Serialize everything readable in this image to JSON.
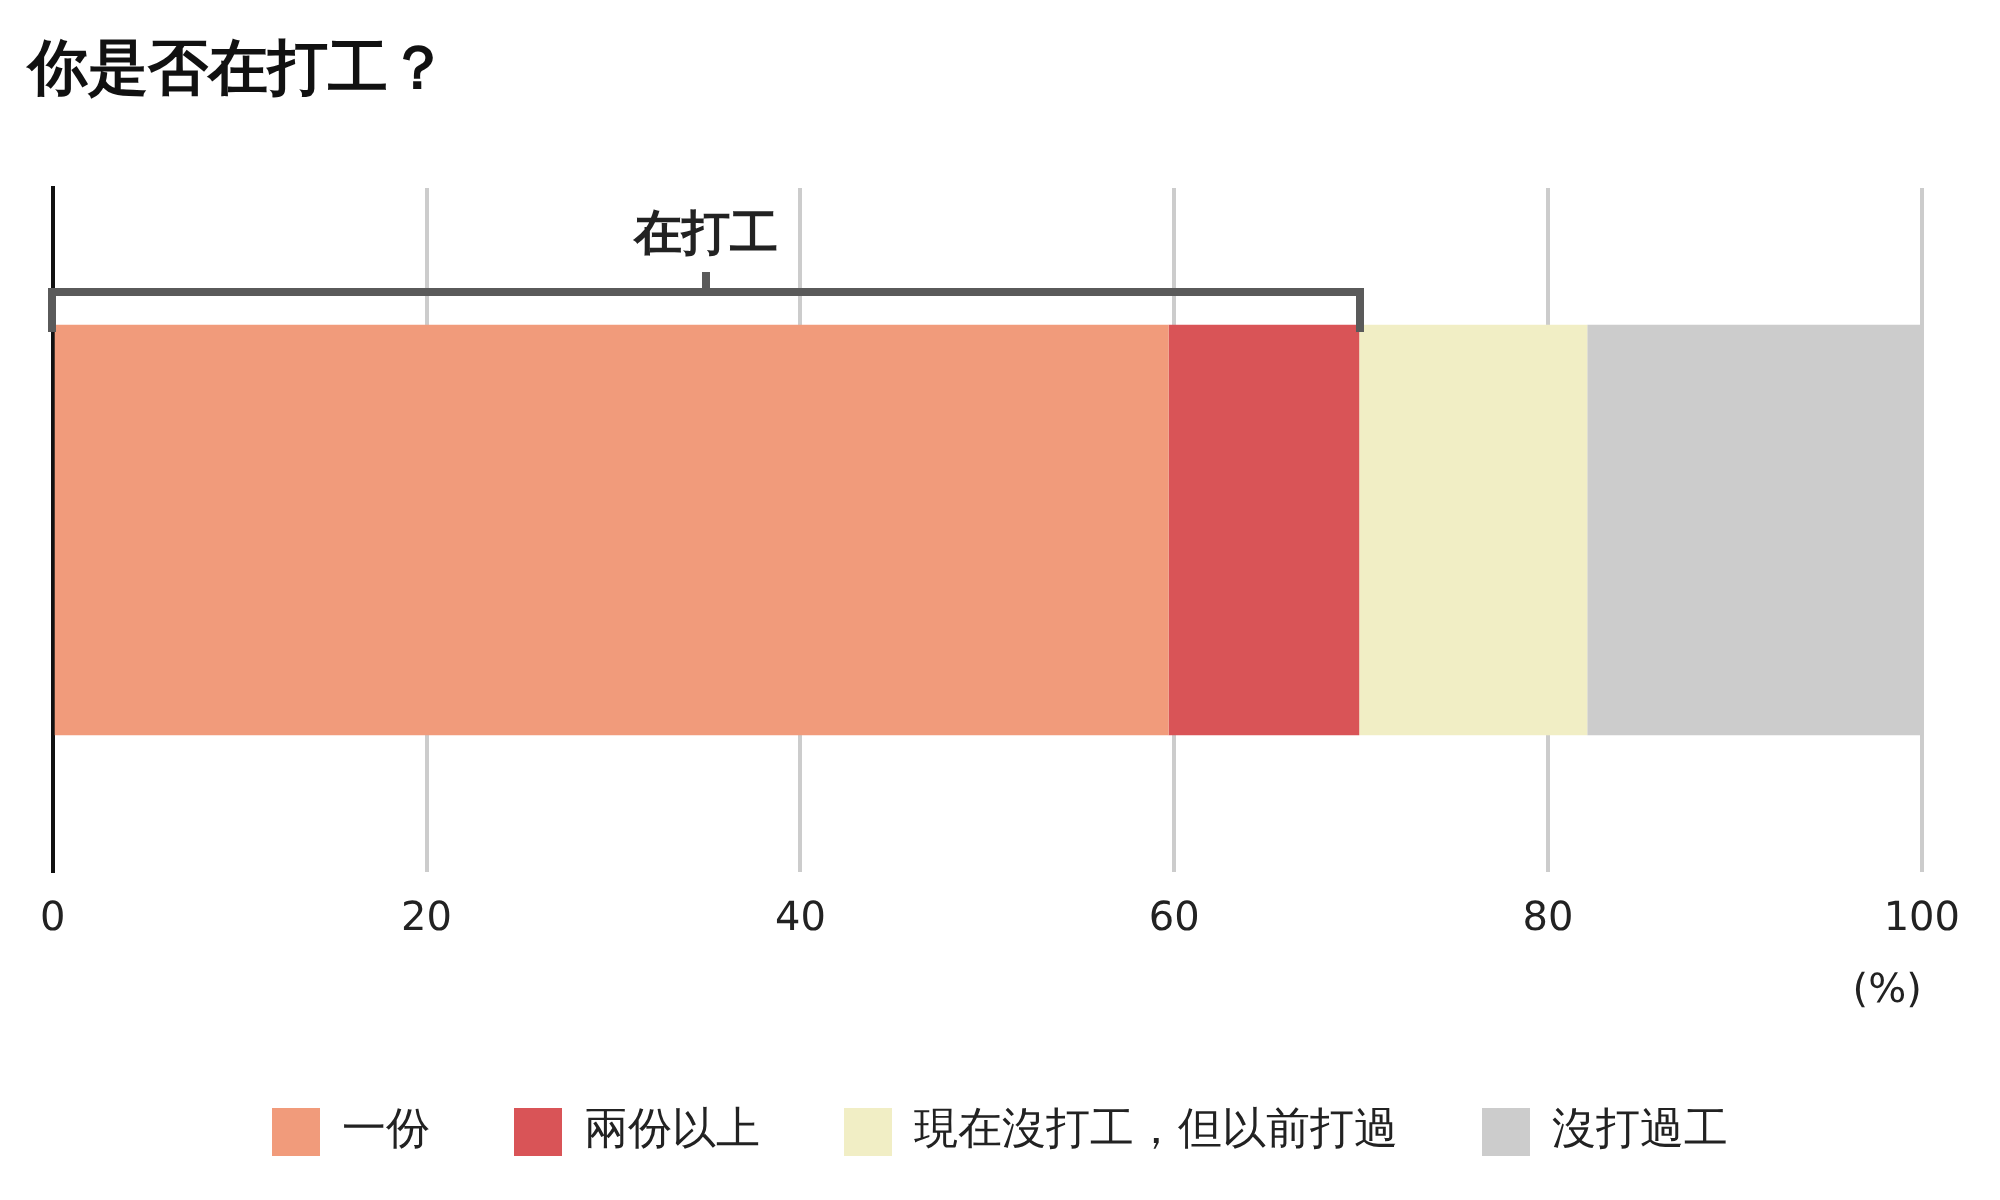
{
  "chart_data": {
    "type": "bar",
    "title": "你是否在打工？",
    "orientation": "horizontal",
    "stacked": true,
    "categories": [
      null
    ],
    "series": [
      {
        "name": "一份",
        "color": "#f19b7b",
        "values": [
          59.7
        ]
      },
      {
        "name": "兩份以上",
        "color": "#d95457",
        "values": [
          10.2
        ]
      },
      {
        "name": "現在沒打工，但以前打過",
        "color": "#f1eec5",
        "values": [
          12.2
        ]
      },
      {
        "name": "沒打過工",
        "color": "#cccccc",
        "values": [
          17.9
        ]
      }
    ],
    "xlabel": "(%)",
    "xlim": [
      0,
      100
    ],
    "xticks": [
      0,
      20,
      40,
      60,
      80,
      100
    ],
    "grid": "x",
    "legend": "bottom",
    "annotations": [
      "在打工"
    ]
  }
}
